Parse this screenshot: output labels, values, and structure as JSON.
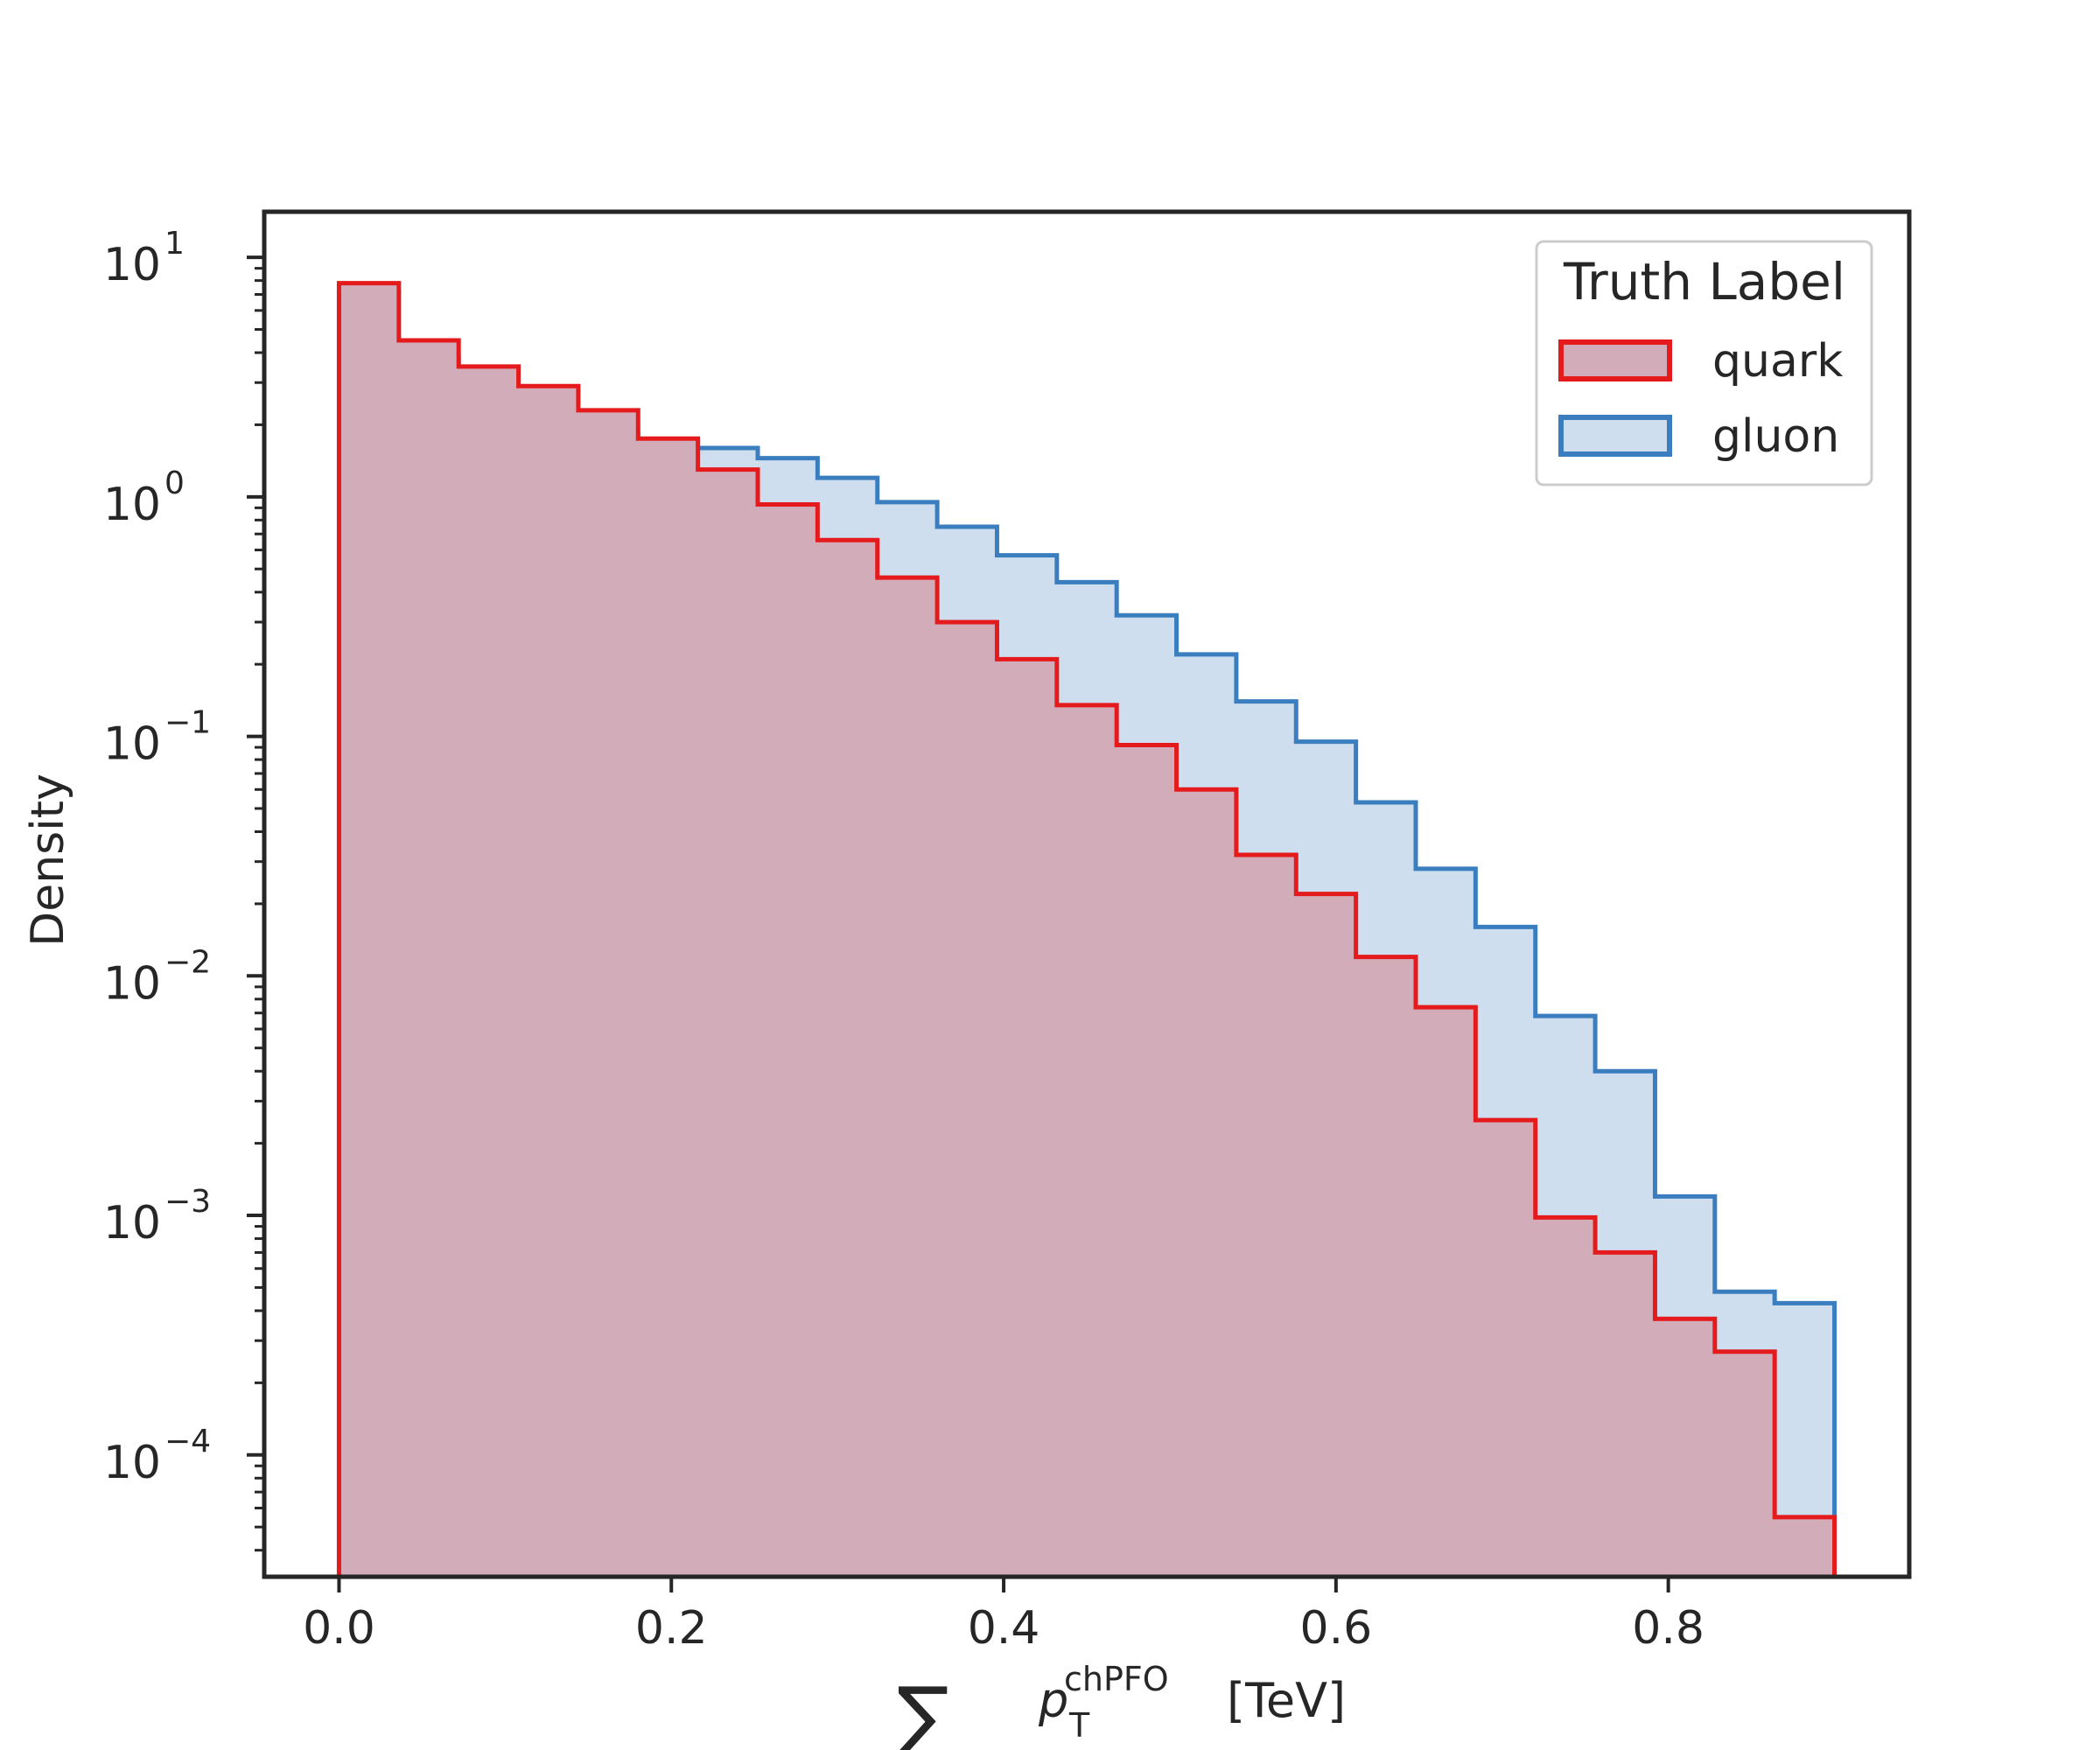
{
  "chart_data": {
    "type": "histogram-step",
    "xlabel": "[TeV]",
    "xlabel_symbol": "∑",
    "xlabel_var": "p",
    "xlabel_sup": "chPFO",
    "xlabel_sub": "T",
    "ylabel": "Density",
    "yscale": "log",
    "xlim": [
      -0.045,
      0.945
    ],
    "ylim": [
      3.1e-05,
      15.5
    ],
    "x_ticks": [
      0.0,
      0.2,
      0.4,
      0.6,
      0.8
    ],
    "x_tick_labels": [
      "0.0",
      "0.2",
      "0.4",
      "0.6",
      "0.8"
    ],
    "y_ticks": [
      10,
      1,
      0.1,
      0.01,
      0.001,
      0.0001
    ],
    "y_tick_labels": [
      {
        "base": "10",
        "exp": "1"
      },
      {
        "base": "10",
        "exp": "0"
      },
      {
        "base": "10",
        "exp": "−1"
      },
      {
        "base": "10",
        "exp": "−2"
      },
      {
        "base": "10",
        "exp": "−3"
      },
      {
        "base": "10",
        "exp": "−4"
      }
    ],
    "bin_edges": [
      0.0,
      0.036,
      0.072,
      0.108,
      0.144,
      0.18,
      0.216,
      0.252,
      0.288,
      0.324,
      0.36,
      0.396,
      0.432,
      0.468,
      0.504,
      0.54,
      0.576,
      0.612,
      0.648,
      0.684,
      0.72,
      0.756,
      0.792,
      0.828,
      0.864,
      0.9
    ],
    "legend": {
      "title": "Truth Label",
      "placement": "upper right"
    },
    "series": [
      {
        "name": "gluon",
        "line_color": "#3a7ebf",
        "fill_color": "#cfdeee",
        "values": [
          7.2,
          3.8,
          2.5,
          2.25,
          1.85,
          1.7,
          1.6,
          1.45,
          1.2,
          0.95,
          0.75,
          0.57,
          0.44,
          0.32,
          0.22,
          0.14,
          0.095,
          0.053,
          0.028,
          0.016,
          0.0068,
          0.004,
          0.0012,
          0.00048,
          0.00043
        ]
      },
      {
        "name": "quark",
        "line_color": "#e41a1c",
        "fill_color": "#d2adb9",
        "values": [
          7.8,
          4.5,
          3.5,
          2.9,
          2.3,
          1.75,
          1.3,
          0.93,
          0.66,
          0.46,
          0.3,
          0.21,
          0.135,
          0.092,
          0.06,
          0.032,
          0.022,
          0.012,
          0.0074,
          0.0025,
          0.00098,
          0.0007,
          0.00037,
          0.00027,
          5.5e-05
        ]
      }
    ]
  }
}
